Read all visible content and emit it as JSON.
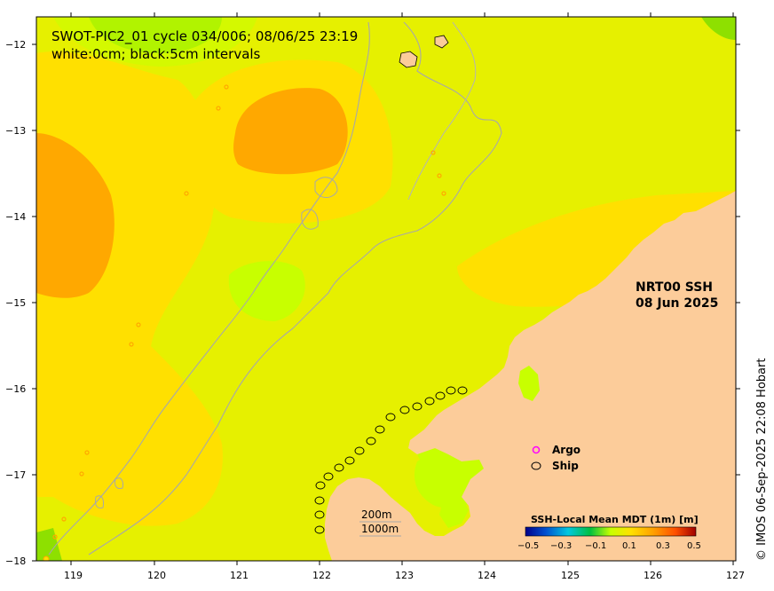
{
  "title": {
    "line1": "SWOT-PIC2_01 cycle 034/006; 08/06/25 23:19",
    "line2": "white:0cm; black:5cm intervals"
  },
  "product": {
    "line1": "NRT00 SSH",
    "line2": "08 Jun 2025"
  },
  "legend": {
    "argo_label": "Argo",
    "ship_label": "Ship",
    "argo_color": "#ff00ff",
    "ship_color": "#000000"
  },
  "scale_bar": {
    "label_200": "200m",
    "label_1000": "1000m"
  },
  "colorbar": {
    "title": "SSH-Local Mean MDT (1m) [m]",
    "tick_labels": [
      "−0.5",
      "−0.3",
      "−0.1",
      "0.1",
      "0.3",
      "0.5"
    ],
    "colors": [
      "#00008b",
      "#0050d0",
      "#00c8e0",
      "#00c040",
      "#c8ff00",
      "#ffe000",
      "#ffa000",
      "#ff5000",
      "#a00000"
    ]
  },
  "axes": {
    "x_tick_labels": [
      "119",
      "120",
      "121",
      "122",
      "123",
      "124",
      "125",
      "126",
      "127"
    ],
    "y_tick_labels": [
      "−12",
      "−13",
      "−14",
      "−15",
      "−16",
      "−17",
      "−18"
    ]
  },
  "credit": "© IMOS 06-Sep-2025 22:08 Hobart",
  "colors": {
    "land": "#fccc9a",
    "sea_base": "#e6f000",
    "yellow": "#ffe000",
    "orange": "#ffa800",
    "green": "#8ee000",
    "lime": "#c8ff00"
  }
}
